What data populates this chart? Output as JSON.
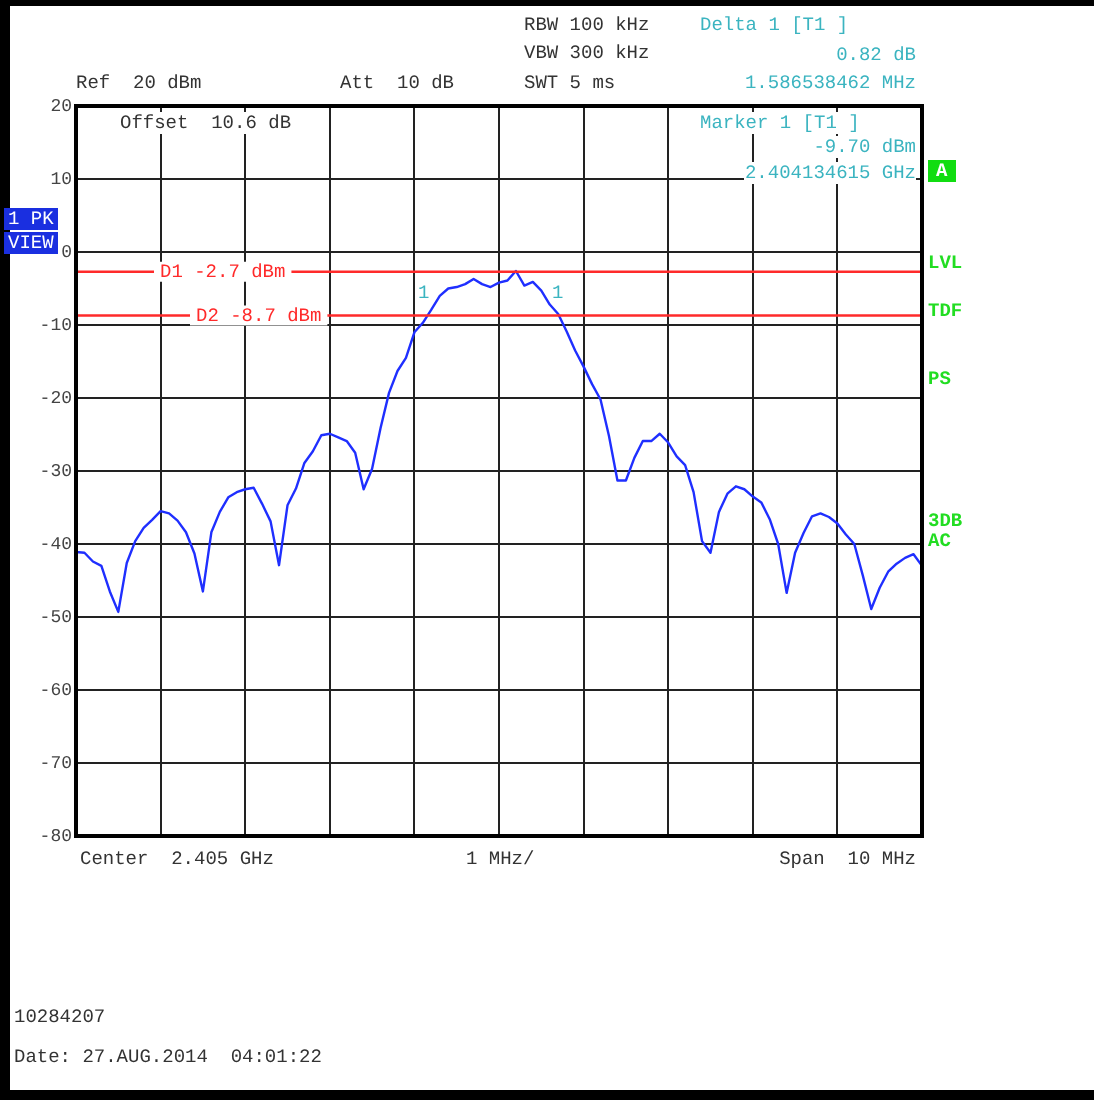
{
  "chart_data": {
    "type": "line",
    "categories": [
      null,
      null,
      null,
      null,
      null,
      null,
      null,
      null,
      null,
      null,
      null,
      null,
      null,
      null,
      null,
      null,
      null,
      null,
      null,
      null,
      null,
      null,
      null,
      null,
      null,
      null,
      null,
      null,
      null,
      null,
      null,
      null,
      null,
      null,
      null,
      null,
      null,
      null,
      null,
      null,
      null,
      null,
      null,
      null,
      null,
      null,
      null,
      null,
      null,
      null,
      null,
      null,
      null,
      null,
      null,
      null,
      null,
      null,
      null,
      null,
      null,
      null,
      null,
      null,
      null,
      null,
      null,
      null,
      null,
      null,
      null,
      null,
      null,
      null,
      null,
      null,
      null,
      null,
      null,
      null,
      null,
      null,
      null,
      null,
      null,
      null,
      null,
      null,
      null,
      null,
      null,
      null,
      null,
      null,
      null,
      null,
      null,
      null,
      null,
      null,
      null
    ],
    "ylim": [
      -80,
      20
    ],
    "yticks": [
      -80,
      -70,
      -60,
      -50,
      -40,
      -30,
      -20,
      -10,
      0,
      10,
      20
    ],
    "grid": true,
    "legend": false,
    "tick_labels": "y",
    "marker": "none",
    "line_style": "solid",
    "series": [
      {
        "color": "#1f2fff",
        "values": [
          -41.1,
          -41.2,
          -42.4,
          -43,
          -46.5,
          -49.3,
          -42.6,
          -39.6,
          -37.8,
          -36.7,
          -35.5,
          -35.8,
          -36.8,
          -38.4,
          -41.3,
          -46.5,
          -38.4,
          -35.6,
          -33.6,
          -32.9,
          -32.5,
          -32.3,
          -34.5,
          -36.9,
          -42.9,
          -34.7,
          -32.4,
          -28.9,
          -27.3,
          -25.1,
          -24.9,
          -25.4,
          -25.9,
          -27.5,
          -32.5,
          -29.7,
          -24.1,
          -19.3,
          -16.3,
          -14.5,
          -11,
          -9.7,
          -7.9,
          -6,
          -5,
          -4.8,
          -4.4,
          -3.7,
          -4.4,
          -4.8,
          -4.2,
          -3.9,
          -2.6,
          -4.6,
          -4.1,
          -5.3,
          -7.2,
          -8.5,
          -10.9,
          -13.5,
          -15.7,
          -18.1,
          -20.2,
          -25.2,
          -31.3,
          -31.3,
          -28.2,
          -25.9,
          -25.9,
          -24.9,
          -26.1,
          -28,
          -29.2,
          -32.9,
          -39.6,
          -41.2,
          -35.6,
          -33.1,
          -32.1,
          -32.5,
          -33.5,
          -34.3,
          -36.6,
          -40,
          -46.7,
          -41.2,
          -38.5,
          -36.2,
          -35.8,
          -36.3,
          -37.2,
          -38.7,
          -40,
          -44.3,
          -48.9,
          -46,
          -43.8,
          -42.7,
          -41.9,
          -41.4,
          -43
        ]
      }
    ],
    "ref_lines": [
      {
        "axis": "y",
        "value": -2.7,
        "label": "D1 -2.7 dBm",
        "color": "#ff2a2a"
      },
      {
        "axis": "y",
        "value": -8.7,
        "label": "D2 -8.7 dBm",
        "color": "#ff2a2a"
      }
    ],
    "annotations": [
      "RBW 100 kHz",
      "VBW 300 kHz",
      "Ref  20 dBm",
      "Att  10 dB",
      "SWT 5 ms",
      "Delta 1 [T1 ]",
      "0.82 dB",
      "1.586538462 MHz",
      "Offset  10.6 dB",
      "Marker 1 [T1 ]",
      "-9.70 dBm",
      "2.404134615 GHz",
      "A",
      "1 PK",
      "VIEW",
      "LVL",
      "TDF",
      "PS",
      "3DB",
      "AC",
      "Center  2.405 GHz",
      "1 MHz/",
      "Span  10 MHz",
      "10284207",
      "Date: 27.AUG.2014  04:01:22",
      "1",
      "1"
    ]
  }
}
